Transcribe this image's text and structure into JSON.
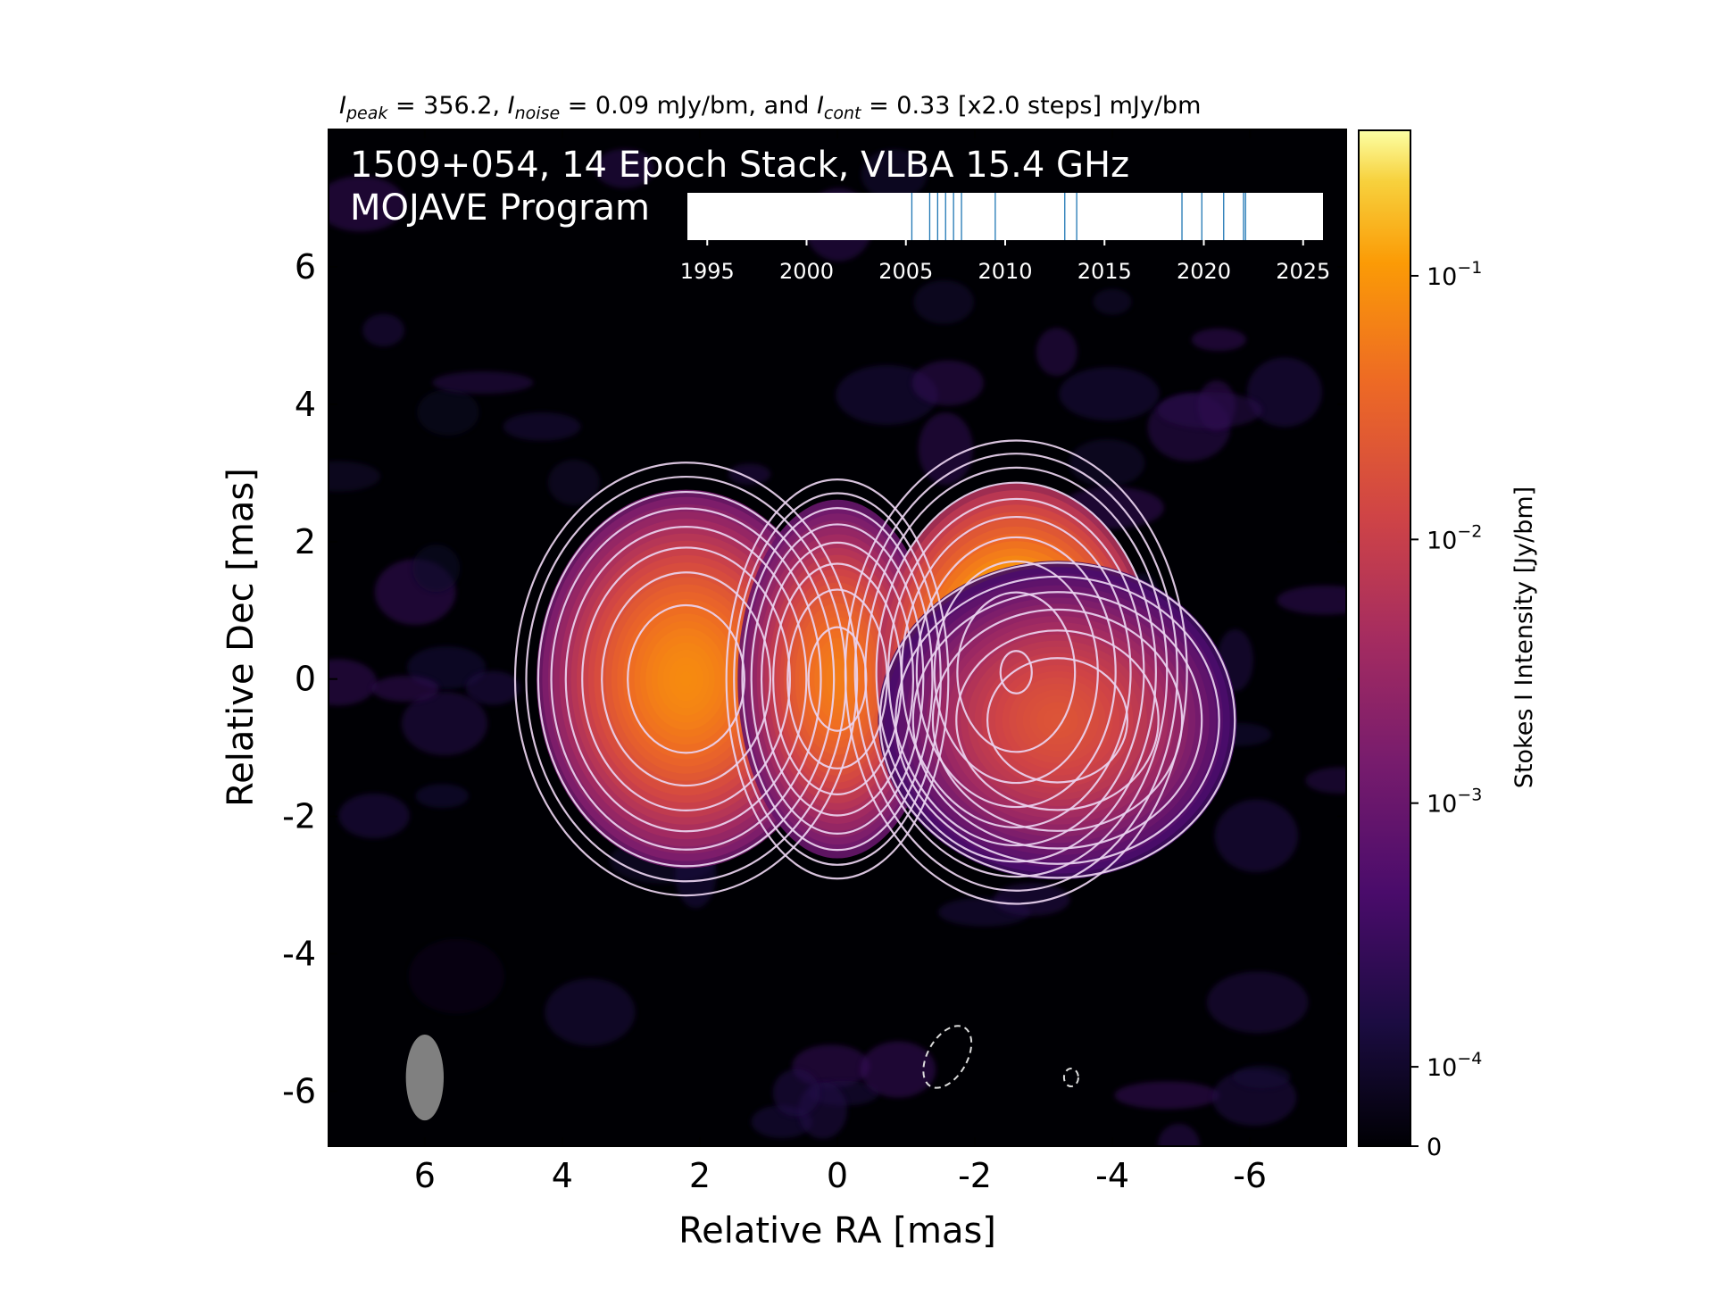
{
  "chart_data": {
    "type": "heatmap",
    "header": {
      "peak_sym": "I",
      "peak_sub": "peak",
      "peak_text": " = 356.2, ",
      "noise_sym": "I",
      "noise_sub": "noise",
      "noise_text": " = 0.09 mJy/bm, and ",
      "cont_sym": "I",
      "cont_sub": "cont",
      "cont_text": " = 0.33 [x2.0 steps] mJy/bm"
    },
    "title_line1": "1509+054, 14 Epoch Stack, VLBA 15.4 GHz",
    "title_line2": "MOJAVE Program",
    "xlabel": "Relative RA [mas]",
    "ylabel": "Relative Dec [mas]",
    "xlim": [
      7.4,
      -7.4
    ],
    "ylim": [
      -6.8,
      8.0
    ],
    "x_ticks": [
      6,
      4,
      2,
      0,
      -2,
      -4,
      -6
    ],
    "y_ticks": [
      6,
      4,
      2,
      0,
      -2,
      -4,
      -6
    ],
    "colorbar": {
      "label": "Stokes I Intensity [Jy/bm]",
      "scale": "log",
      "range": [
        5e-05,
        0.3562
      ],
      "ticks": [
        {
          "value": 0.1,
          "base": "10",
          "exp": "−1"
        },
        {
          "value": 0.01,
          "base": "10",
          "exp": "−2"
        },
        {
          "value": 0.001,
          "base": "10",
          "exp": "−3"
        },
        {
          "value": 0.0001,
          "base": "10",
          "exp": "−4"
        }
      ],
      "zero_label": "0",
      "colormap": "inferno"
    },
    "components": [
      {
        "x": 2.2,
        "y": 0.0,
        "peak": 0.08,
        "sx": 0.75,
        "sy": 0.95
      },
      {
        "x": 0.0,
        "y": 0.0,
        "peak": 0.06,
        "sx": 0.5,
        "sy": 0.9
      },
      {
        "x": -2.6,
        "y": 0.1,
        "peak": 0.3562,
        "sx": 0.7,
        "sy": 0.95
      },
      {
        "x": -3.2,
        "y": -0.6,
        "peak": 0.02,
        "sx": 0.9,
        "sy": 0.8
      }
    ],
    "contour_levels_mjy": [
      0.33,
      0.66,
      1.32,
      2.64,
      5.28,
      10.56,
      21.12,
      42.24,
      84.48,
      168.96,
      337.92
    ],
    "negative_contours": [
      {
        "x": -1.6,
        "y": -5.5
      },
      {
        "x": -3.4,
        "y": -5.8
      }
    ],
    "beam": {
      "x": 6.0,
      "y": -5.8,
      "major": 1.25,
      "minor": 0.55,
      "pa_deg": 0
    },
    "epochs": {
      "axis_ticks": [
        1995,
        2000,
        2005,
        2010,
        2015,
        2020,
        2025
      ],
      "range": [
        1994.0,
        2026.0
      ],
      "dates": [
        2005.3,
        2006.2,
        2006.6,
        2007.0,
        2007.4,
        2007.8,
        2009.5,
        2013.0,
        2013.6,
        2018.9,
        2019.9,
        2021.0,
        2022.0,
        2022.1
      ]
    },
    "grid": false,
    "legend": "none"
  }
}
